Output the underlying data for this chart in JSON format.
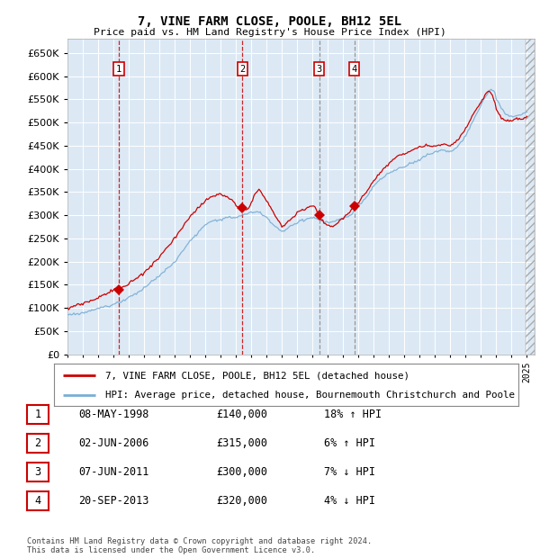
{
  "title": "7, VINE FARM CLOSE, POOLE, BH12 5EL",
  "subtitle": "Price paid vs. HM Land Registry's House Price Index (HPI)",
  "legend_line1": "7, VINE FARM CLOSE, POOLE, BH12 5EL (detached house)",
  "legend_line2": "HPI: Average price, detached house, Bournemouth Christchurch and Poole",
  "footer1": "Contains HM Land Registry data © Crown copyright and database right 2024.",
  "footer2": "This data is licensed under the Open Government Licence v3.0.",
  "transactions": [
    {
      "num": 1,
      "date": "08-MAY-1998",
      "price": 140000,
      "hpi_rel": "18% ↑ HPI",
      "date_dec": 1998.36
    },
    {
      "num": 2,
      "date": "02-JUN-2006",
      "price": 315000,
      "hpi_rel": "6% ↑ HPI",
      "date_dec": 2006.42
    },
    {
      "num": 3,
      "date": "07-JUN-2011",
      "price": 300000,
      "hpi_rel": "7% ↓ HPI",
      "date_dec": 2011.43
    },
    {
      "num": 4,
      "date": "20-SEP-2013",
      "price": 320000,
      "hpi_rel": "4% ↓ HPI",
      "date_dec": 2013.72
    }
  ],
  "hpi_color": "#7aadd4",
  "price_color": "#cc0000",
  "background_plot": "#dce9f5",
  "background_fig": "#ffffff",
  "grid_color": "#ffffff",
  "ylim": [
    0,
    680000
  ],
  "yticks": [
    0,
    50000,
    100000,
    150000,
    200000,
    250000,
    300000,
    350000,
    400000,
    450000,
    500000,
    550000,
    600000,
    650000
  ],
  "xlim_start": 1995.0,
  "xlim_end": 2025.5
}
